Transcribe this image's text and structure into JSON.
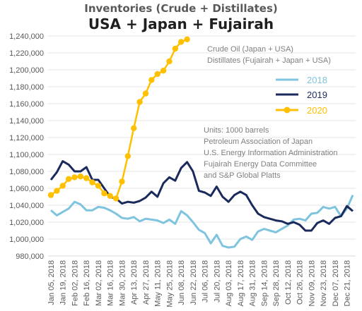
{
  "chart_data": {
    "type": "line",
    "title": "Inventories (Crude + Distillates)",
    "subtitle": "USA + Japan + Fujairah",
    "xlabel": "",
    "ylabel": "",
    "ylim": [
      980000,
      1240000
    ],
    "y_ticks": [
      980000,
      1000000,
      1020000,
      1040000,
      1060000,
      1080000,
      1100000,
      1120000,
      1140000,
      1160000,
      1180000,
      1200000,
      1220000,
      1240000
    ],
    "y_tick_labels": [
      "980,000",
      "1,000,000",
      "1,020,000",
      "1,040,000",
      "1,060,000",
      "1,080,000",
      "1,100,000",
      "1,120,000",
      "1,140,000",
      "1,160,000",
      "1,180,000",
      "1,200,000",
      "1,220,000",
      "1,240,000"
    ],
    "x_tick_labels": [
      "Jan 05, 2018",
      "Jan 19, 2018",
      "Feb 02, 2018",
      "Feb 16, 2018",
      "Mar 02, 2018",
      "Mar 16, 2018",
      "Mar 30, 2018",
      "Apr 13, 2018",
      "Apr 27, 2018",
      "May 11, 2018",
      "May 25, 2018",
      "Jun 08, 2018",
      "Jun 22, 2018",
      "Jul 06, 2018",
      "Jul 20, 2018",
      "Aug 03, 2018",
      "Aug 17, 2018",
      "Aug 31, 2018",
      "Sep 14, 2018",
      "Sep 28, 2018",
      "Oct 12, 2018",
      "Oct 26, 2018",
      "Nov 09, 2018",
      "Nov 23, 2018",
      "Dec 07, 2018",
      "Dec 21, 2018"
    ],
    "n_weeks": 52,
    "grid": "horizontal",
    "legend_position": "right",
    "series": [
      {
        "name": "2018",
        "color": "#7fc4de",
        "markers": false,
        "values": [
          1034000,
          1028000,
          1032000,
          1036000,
          1044000,
          1041000,
          1034000,
          1034000,
          1038000,
          1037000,
          1034000,
          1030000,
          1025000,
          1024000,
          1026000,
          1021000,
          1024000,
          1023000,
          1022000,
          1019000,
          1023000,
          1018000,
          1033000,
          1028000,
          1020000,
          1011000,
          1007000,
          995000,
          1005000,
          992000,
          990000,
          991000,
          1000000,
          1003000,
          999000,
          1009000,
          1012000,
          1010000,
          1008000,
          1012000,
          1016000,
          1023000,
          1024000,
          1022000,
          1030000,
          1031000,
          1038000,
          1036000,
          1038000,
          1027000,
          1036000,
          1052000
        ]
      },
      {
        "name": "2019",
        "color": "#1b2a5c",
        "markers": false,
        "values": [
          1070000,
          1079000,
          1092000,
          1088000,
          1080000,
          1080000,
          1085000,
          1070000,
          1070000,
          1060000,
          1050000,
          1048000,
          1042000,
          1044000,
          1043000,
          1045000,
          1049000,
          1056000,
          1050000,
          1066000,
          1073000,
          1069000,
          1084000,
          1091000,
          1080000,
          1057000,
          1055000,
          1051000,
          1062000,
          1050000,
          1044000,
          1052000,
          1056000,
          1052000,
          1040000,
          1030000,
          1026000,
          1024000,
          1022000,
          1021000,
          1018000,
          1020000,
          1017000,
          1010000,
          1010000,
          1019000,
          1022000,
          1018000,
          1025000,
          1027000,
          1039000,
          1033000
        ]
      },
      {
        "name": "2020",
        "color": "#ffc000",
        "markers": true,
        "values": [
          1052000,
          1057000,
          1063000,
          1071000,
          1073000,
          1074000,
          1072000,
          1067000,
          1063000,
          1054000,
          1051000,
          1048000,
          1068000,
          1098000,
          1131000,
          1162000,
          1172000,
          1188000,
          1195000,
          1199000,
          1210000,
          1225000,
          1233000,
          1236000
        ]
      }
    ],
    "annotations": {
      "data_types": [
        "Crude Oil (Japan + USA)",
        "Distillates (Fujairah + Japan + USA)"
      ],
      "sources": [
        "Units: 1000 barrels",
        "Petroleum Association of Japan",
        "U.S. Energy Information Administration",
        "Fujairah Energy Data Committee",
        "and S&P Global Platts"
      ]
    }
  }
}
